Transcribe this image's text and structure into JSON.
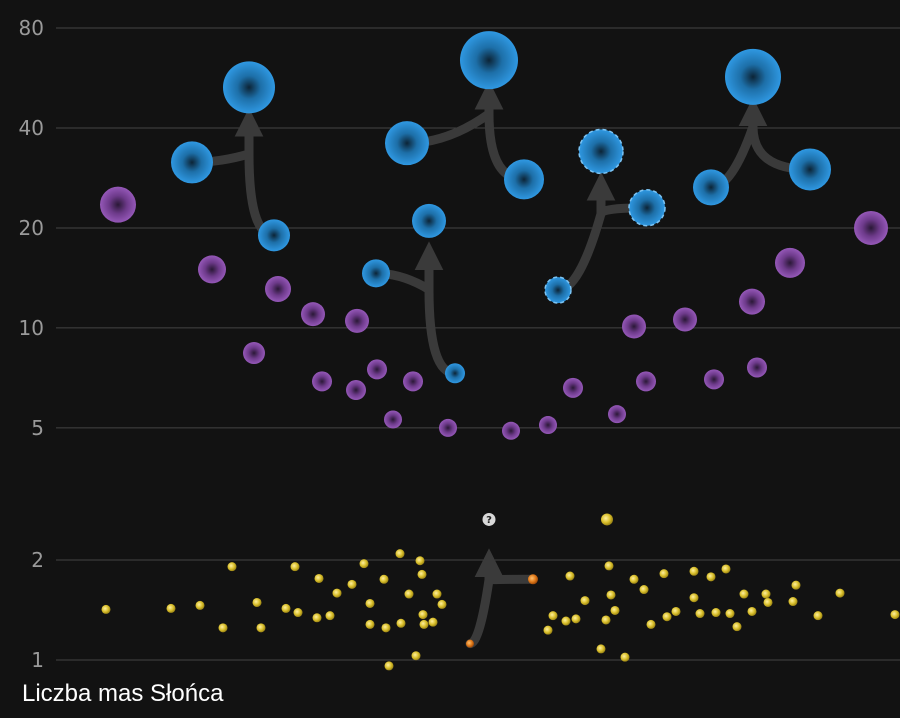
{
  "chart_data": {
    "type": "scatter",
    "ylabel": "Liczba mas Słońca",
    "yscale": "log",
    "ylim": [
      0.9,
      95
    ],
    "xlim": [
      0,
      900
    ],
    "yticks": [
      {
        "value": 1,
        "label": "1"
      },
      {
        "value": 2,
        "label": "2"
      },
      {
        "value": 5,
        "label": "5"
      },
      {
        "value": 10,
        "label": "10"
      },
      {
        "value": 20,
        "label": "20"
      },
      {
        "value": 40,
        "label": "40"
      },
      {
        "value": 80,
        "label": "80"
      }
    ],
    "grid": true,
    "colors": {
      "background": "#121212",
      "grid": "#444444",
      "black_hole": "#2a8fd8",
      "black_hole_dashed": "#2a8fd8",
      "star_remnant": "#8e4fae",
      "neutron_star": "#d9bf2b",
      "neutron_star_merger": "#e07a1a",
      "arrow": "#3a3a3a",
      "unknown": "#d8d8d8"
    },
    "series": [
      {
        "kind": "black_hole",
        "points": [
          {
            "x": 192,
            "y": 31.5,
            "r": 21
          },
          {
            "x": 249,
            "y": 53,
            "r": 26
          },
          {
            "x": 274,
            "y": 19,
            "r": 16
          },
          {
            "x": 376,
            "y": 14.6,
            "r": 14
          },
          {
            "x": 407,
            "y": 36,
            "r": 22
          },
          {
            "x": 429,
            "y": 21,
            "r": 17
          },
          {
            "x": 455,
            "y": 7.3,
            "r": 10
          },
          {
            "x": 489,
            "y": 64,
            "r": 29
          },
          {
            "x": 524,
            "y": 28,
            "r": 20
          },
          {
            "x": 711,
            "y": 26.5,
            "r": 18
          },
          {
            "x": 753,
            "y": 57,
            "r": 28
          },
          {
            "x": 810,
            "y": 30,
            "r": 21
          }
        ]
      },
      {
        "kind": "black_hole_dashed",
        "points": [
          {
            "x": 558,
            "y": 13,
            "r": 13
          },
          {
            "x": 601,
            "y": 34,
            "r": 22
          },
          {
            "x": 647,
            "y": 23,
            "r": 18
          }
        ]
      },
      {
        "kind": "star_remnant",
        "points": [
          {
            "x": 118,
            "y": 23.5,
            "r": 18
          },
          {
            "x": 212,
            "y": 15,
            "r": 14
          },
          {
            "x": 254,
            "y": 8.4,
            "r": 11
          },
          {
            "x": 278,
            "y": 13.1,
            "r": 13
          },
          {
            "x": 313,
            "y": 11,
            "r": 12
          },
          {
            "x": 357,
            "y": 10.5,
            "r": 12
          },
          {
            "x": 322,
            "y": 6.9,
            "r": 10
          },
          {
            "x": 356,
            "y": 6.5,
            "r": 10
          },
          {
            "x": 377,
            "y": 7.5,
            "r": 10
          },
          {
            "x": 413,
            "y": 6.9,
            "r": 10
          },
          {
            "x": 393,
            "y": 5.3,
            "r": 9
          },
          {
            "x": 448,
            "y": 5,
            "r": 9
          },
          {
            "x": 511,
            "y": 4.9,
            "r": 9
          },
          {
            "x": 548,
            "y": 5.1,
            "r": 9
          },
          {
            "x": 573,
            "y": 6.6,
            "r": 10
          },
          {
            "x": 617,
            "y": 5.5,
            "r": 9
          },
          {
            "x": 634,
            "y": 10.1,
            "r": 12
          },
          {
            "x": 646,
            "y": 6.9,
            "r": 10
          },
          {
            "x": 685,
            "y": 10.6,
            "r": 12
          },
          {
            "x": 714,
            "y": 7,
            "r": 10
          },
          {
            "x": 752,
            "y": 12,
            "r": 13
          },
          {
            "x": 757,
            "y": 7.6,
            "r": 10
          },
          {
            "x": 790,
            "y": 15.7,
            "r": 15
          },
          {
            "x": 871,
            "y": 20,
            "r": 17
          }
        ]
      },
      {
        "kind": "neutron_star",
        "points": [
          {
            "x": 106,
            "y": 1.42
          },
          {
            "x": 171,
            "y": 1.43
          },
          {
            "x": 200,
            "y": 1.46
          },
          {
            "x": 223,
            "y": 1.25
          },
          {
            "x": 232,
            "y": 1.91
          },
          {
            "x": 257,
            "y": 1.49
          },
          {
            "x": 261,
            "y": 1.25
          },
          {
            "x": 286,
            "y": 1.43
          },
          {
            "x": 295,
            "y": 1.91
          },
          {
            "x": 298,
            "y": 1.39
          },
          {
            "x": 317,
            "y": 1.34
          },
          {
            "x": 319,
            "y": 1.76
          },
          {
            "x": 330,
            "y": 1.36
          },
          {
            "x": 337,
            "y": 1.59
          },
          {
            "x": 352,
            "y": 1.69
          },
          {
            "x": 364,
            "y": 1.95
          },
          {
            "x": 370,
            "y": 1.48
          },
          {
            "x": 370,
            "y": 1.28
          },
          {
            "x": 384,
            "y": 1.75
          },
          {
            "x": 386,
            "y": 1.25
          },
          {
            "x": 389,
            "y": 0.96
          },
          {
            "x": 400,
            "y": 2.09
          },
          {
            "x": 401,
            "y": 1.29
          },
          {
            "x": 409,
            "y": 1.58
          },
          {
            "x": 416,
            "y": 1.03
          },
          {
            "x": 420,
            "y": 1.99
          },
          {
            "x": 422,
            "y": 1.81
          },
          {
            "x": 423,
            "y": 1.37
          },
          {
            "x": 424,
            "y": 1.28
          },
          {
            "x": 433,
            "y": 1.3
          },
          {
            "x": 437,
            "y": 1.58
          },
          {
            "x": 442,
            "y": 1.47
          },
          {
            "x": 548,
            "y": 1.23
          },
          {
            "x": 553,
            "y": 1.36
          },
          {
            "x": 566,
            "y": 1.31
          },
          {
            "x": 570,
            "y": 1.79
          },
          {
            "x": 576,
            "y": 1.33
          },
          {
            "x": 585,
            "y": 1.51
          },
          {
            "x": 601,
            "y": 1.08
          },
          {
            "x": 606,
            "y": 1.32
          },
          {
            "x": 609,
            "y": 1.92
          },
          {
            "x": 611,
            "y": 1.57
          },
          {
            "x": 615,
            "y": 1.41
          },
          {
            "x": 625,
            "y": 1.02
          },
          {
            "x": 634,
            "y": 1.75
          },
          {
            "x": 644,
            "y": 1.63
          },
          {
            "x": 651,
            "y": 1.28
          },
          {
            "x": 664,
            "y": 1.82
          },
          {
            "x": 667,
            "y": 1.35
          },
          {
            "x": 676,
            "y": 1.4
          },
          {
            "x": 694,
            "y": 1.85
          },
          {
            "x": 694,
            "y": 1.54
          },
          {
            "x": 700,
            "y": 1.38
          },
          {
            "x": 711,
            "y": 1.78
          },
          {
            "x": 716,
            "y": 1.39
          },
          {
            "x": 726,
            "y": 1.88
          },
          {
            "x": 730,
            "y": 1.38
          },
          {
            "x": 737,
            "y": 1.26
          },
          {
            "x": 744,
            "y": 1.58
          },
          {
            "x": 752,
            "y": 1.4
          },
          {
            "x": 766,
            "y": 1.58
          },
          {
            "x": 768,
            "y": 1.49
          },
          {
            "x": 793,
            "y": 1.5
          },
          {
            "x": 796,
            "y": 1.68
          },
          {
            "x": 818,
            "y": 1.36
          },
          {
            "x": 840,
            "y": 1.59
          },
          {
            "x": 895,
            "y": 1.37
          }
        ],
        "large_points": [
          {
            "x": 607,
            "y": 2.65
          }
        ]
      },
      {
        "kind": "neutron_star_merger",
        "points": [
          {
            "x": 470,
            "y": 1.12,
            "r": 4
          },
          {
            "x": 533,
            "y": 1.75,
            "r": 5
          }
        ]
      }
    ],
    "mergers": [
      {
        "a": [
          192,
          31.5
        ],
        "b": [
          274,
          19
        ],
        "to": [
          249,
          53
        ]
      },
      {
        "a": [
          376,
          14.6
        ],
        "b": [
          455,
          7.3
        ],
        "to": [
          429,
          21
        ]
      },
      {
        "a": [
          407,
          36
        ],
        "b": [
          524,
          28
        ],
        "to": [
          489,
          64
        ]
      },
      {
        "a": [
          558,
          13
        ],
        "b": [
          647,
          23
        ],
        "to": [
          601,
          34
        ]
      },
      {
        "a": [
          711,
          26.5
        ],
        "b": [
          810,
          30
        ],
        "to": [
          753,
          57
        ]
      },
      {
        "a": [
          470,
          1.12
        ],
        "b": [
          533,
          1.75
        ],
        "to": [
          489,
          2.5
        ]
      }
    ],
    "unknown_marker": {
      "x": 489,
      "y": 2.65,
      "label": "?"
    }
  }
}
